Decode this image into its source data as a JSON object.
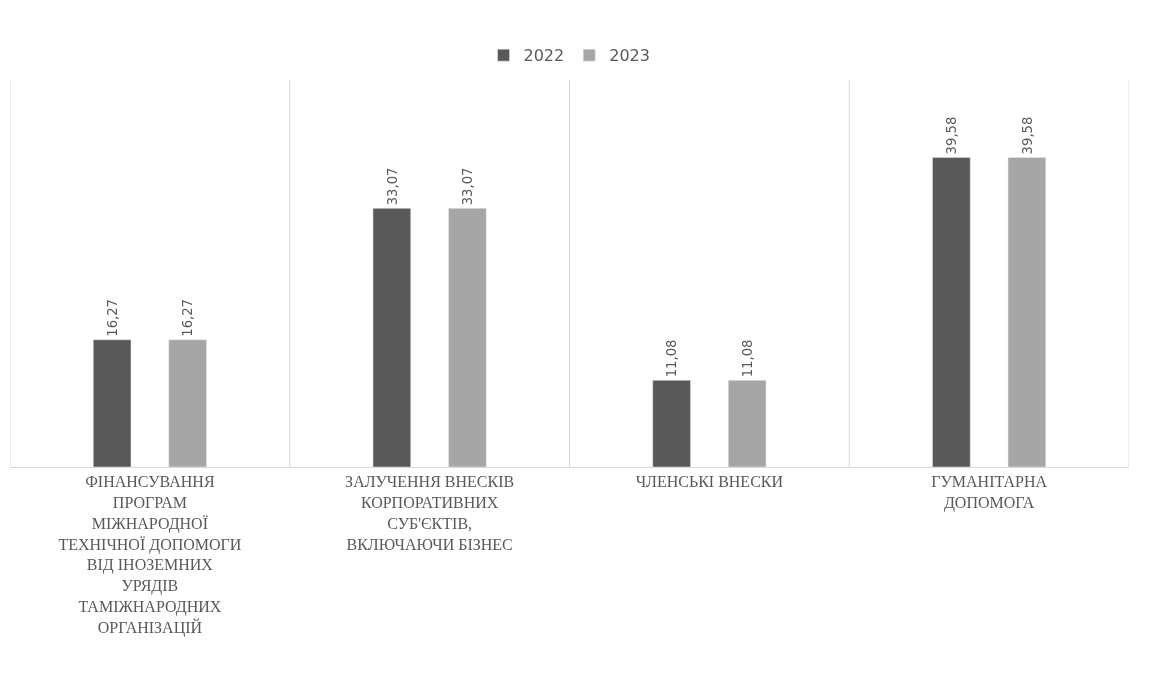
{
  "chart_data": {
    "type": "bar",
    "categories": [
      "ФІНАНСУВАННЯ ПРОГРАМ МІЖНАРОДНОЇ ТЕХНІЧНОЇ ДОПОМОГИ ВІД ІНОЗЕМНИХ УРЯДІВ ТАМІЖНАРОДНИХ ОРГАНІЗАЦІЙ",
      "ЗАЛУЧЕННЯ ВНЕСКІВ КОРПОРАТИВНИХ СУБ'ЄКТІВ, ВКЛЮЧАЮЧИ БІЗНЕС",
      "ЧЛЕНСЬКІ ВНЕСКИ",
      "ГУМАНІТАРНА ДОПОМОГА"
    ],
    "series": [
      {
        "name": "2022",
        "color": "#595959",
        "values": [
          16.27,
          33.07,
          11.08,
          39.58
        ],
        "value_labels": [
          "16,27",
          "33,07",
          "11,08",
          "39,58"
        ]
      },
      {
        "name": "2023",
        "color": "#a6a6a6",
        "values": [
          16.27,
          33.07,
          11.08,
          39.58
        ],
        "value_labels": [
          "16,27",
          "33,07",
          "11,08",
          "39,58"
        ]
      }
    ],
    "legend": "top",
    "grid": "x"
  }
}
